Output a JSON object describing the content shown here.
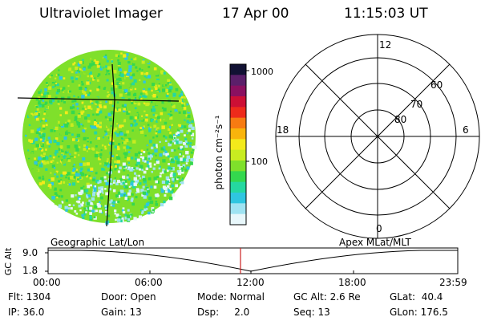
{
  "header": {
    "instrument": "Ultraviolet Imager",
    "date": "17 Apr 00",
    "time": "11:15:03 UT"
  },
  "colorbar": {
    "unit_label": "photon cm⁻²s⁻¹",
    "scale": "log",
    "tick_labels": [
      "1000",
      "100"
    ],
    "colors": [
      "#111133",
      "#5b1f6a",
      "#8a1060",
      "#cc0f35",
      "#ee2b1b",
      "#f77b12",
      "#f9b40c",
      "#f3ea1b",
      "#c8ec20",
      "#7fe02b",
      "#34d84e",
      "#25d8a0",
      "#2fc6e0",
      "#9fe3f2",
      "#e8f7fb"
    ]
  },
  "polar_plot": {
    "mlt_labels": {
      "top": "12",
      "left": "18",
      "right": "6",
      "bottom": "0"
    },
    "lat_labels": [
      "60",
      "70",
      "80"
    ]
  },
  "timeseries": {
    "left_label": "Geographic Lat/Lon",
    "right_label": "Apex MLat/MLT",
    "y_axis_label": "GC Alt",
    "y_ticks": [
      "9.0",
      "1.8"
    ],
    "x_ticks": [
      "00:00",
      "06:00",
      "12:00",
      "18:00",
      "23:59"
    ]
  },
  "footer": {
    "flt": "Flt: 1304",
    "door": "Door: Open",
    "mode": "Mode: Normal",
    "gc_alt": "GC Alt: 2.6 Re",
    "glat": "GLat:  40.4",
    "ip": "IP: 36.0",
    "gain": "Gain: 13",
    "dsp": "Dsp:     2.0",
    "seq": "Seq: 13",
    "glon": "GLon: 176.5"
  }
}
